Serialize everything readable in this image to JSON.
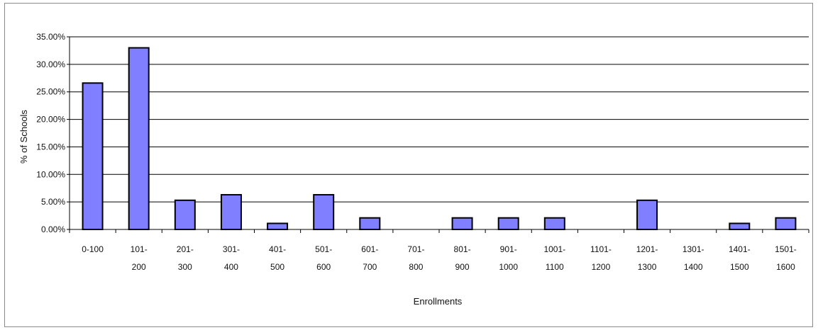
{
  "chart_data": {
    "type": "bar",
    "title": "",
    "xlabel": "Enrollments",
    "ylabel": "% of Schools",
    "ylim": [
      0,
      35
    ],
    "y_ticks": [
      "0.00%",
      "5.00%",
      "10.00%",
      "15.00%",
      "20.00%",
      "25.00%",
      "30.00%",
      "35.00%"
    ],
    "y_tick_values": [
      0,
      5,
      10,
      15,
      20,
      25,
      30,
      35
    ],
    "categories": [
      [
        "0-100",
        ""
      ],
      [
        "101-",
        "200"
      ],
      [
        "201-",
        "300"
      ],
      [
        "301-",
        "400"
      ],
      [
        "401-",
        "500"
      ],
      [
        "501-",
        "600"
      ],
      [
        "601-",
        "700"
      ],
      [
        "701-",
        "800"
      ],
      [
        "801-",
        "900"
      ],
      [
        "901-",
        "1000"
      ],
      [
        "1001-",
        "1100"
      ],
      [
        "1101-",
        "1200"
      ],
      [
        "1201-",
        "1300"
      ],
      [
        "1301-",
        "1400"
      ],
      [
        "1401-",
        "1500"
      ],
      [
        "1501-",
        "1600"
      ]
    ],
    "values": [
      26.6,
      33.0,
      5.3,
      6.3,
      1.1,
      6.3,
      2.1,
      0,
      2.1,
      2.1,
      2.1,
      0,
      5.3,
      0,
      1.1,
      2.1
    ],
    "grid": true,
    "colors": {
      "bar_fill": "#7f7fff",
      "bar_stroke": "#000000",
      "grid": "#000000",
      "axis": "#000000"
    }
  }
}
